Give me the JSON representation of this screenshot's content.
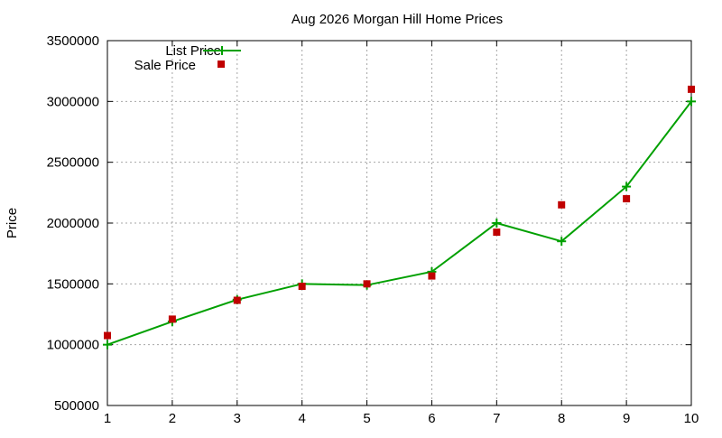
{
  "chart_data": {
    "type": "line",
    "title": "Aug 2026 Morgan Hill Home Prices",
    "xlabel": "",
    "ylabel": "Price",
    "x": [
      1,
      2,
      3,
      4,
      5,
      6,
      7,
      8,
      9,
      10
    ],
    "xlim": [
      1,
      10
    ],
    "ylim": [
      500000,
      3500000
    ],
    "x_ticks": [
      "1",
      "2",
      "3",
      "4",
      "5",
      "6",
      "7",
      "8",
      "9",
      "10"
    ],
    "y_tick_values": [
      500000,
      1000000,
      1500000,
      2000000,
      2500000,
      3000000,
      3500000
    ],
    "y_ticks": [
      "500000",
      "1000000",
      "1500000",
      "2000000",
      "2500000",
      "3000000",
      "3500000"
    ],
    "grid": true,
    "legend_position": "top-left",
    "series": [
      {
        "name": "List Price",
        "style": "line with plus markers",
        "color": "#00a000",
        "values": [
          1000000,
          1190000,
          1370000,
          1500000,
          1490000,
          1600000,
          2000000,
          1850000,
          2300000,
          3000000
        ]
      },
      {
        "name": "Sale Price",
        "style": "square markers",
        "color": "#c00000",
        "values": [
          1075000,
          1210000,
          1365000,
          1480000,
          1500000,
          1565000,
          1925000,
          2150000,
          2200000,
          3100000
        ]
      }
    ]
  }
}
